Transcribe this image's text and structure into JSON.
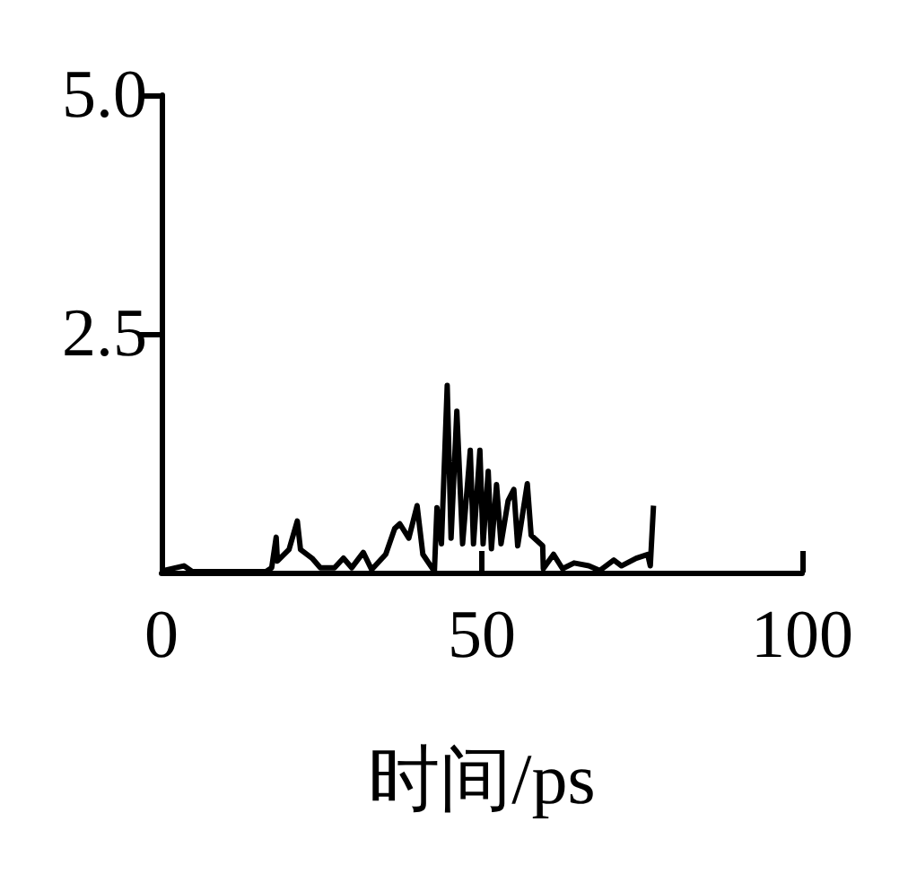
{
  "chart_data": {
    "type": "line",
    "xlabel": "时间/ps",
    "x": [
      0.3,
      3.5,
      4.8,
      16.3,
      17.2,
      17.9,
      18.1,
      19.9,
      21.2,
      21.7,
      23.5,
      24.8,
      27,
      28.4,
      29.7,
      31.5,
      32.8,
      35,
      36.4,
      37.2,
      38.6,
      39.9,
      40.8,
      42.6,
      43,
      43.7,
      44.6,
      45.2,
      46.1,
      47,
      48.2,
      48.7,
      49.7,
      50.2,
      51,
      51.5,
      52.3,
      53,
      54.1,
      55,
      55.6,
      57.1,
      57.7,
      59.5,
      59.6,
      61.2,
      62.6,
      64.4,
      66.7,
      68.4,
      70.6,
      71.8,
      74.1,
      75.9,
      76.3,
      76.8
    ],
    "series": [
      {
        "color": "#000000",
        "values": [
          0.02,
          0.07,
          0.01,
          0.01,
          0.05,
          0.37,
          0.12,
          0.24,
          0.54,
          0.24,
          0.15,
          0.05,
          0.05,
          0.15,
          0.05,
          0.21,
          0.03,
          0.19,
          0.46,
          0.51,
          0.36,
          0.7,
          0.19,
          0.01,
          0.68,
          0.3,
          1.96,
          0.36,
          1.69,
          0.3,
          1.28,
          0.3,
          1.28,
          0.3,
          1.06,
          0.25,
          0.92,
          0.3,
          0.75,
          0.87,
          0.28,
          0.93,
          0.39,
          0.28,
          0.04,
          0.19,
          0.04,
          0.1,
          0.07,
          0.02,
          0.13,
          0.07,
          0.15,
          0.19,
          0.07,
          0.7
        ]
      }
    ],
    "xlim": [
      0,
      100
    ],
    "xticks": [
      0,
      50,
      100
    ],
    "ylim": [
      0,
      5
    ],
    "yticks": [
      {
        "value": 2.5,
        "label": "2.5"
      },
      {
        "value": 5,
        "label": "5.0"
      }
    ],
    "grid": false,
    "marker": "none",
    "line_style": "solid"
  }
}
